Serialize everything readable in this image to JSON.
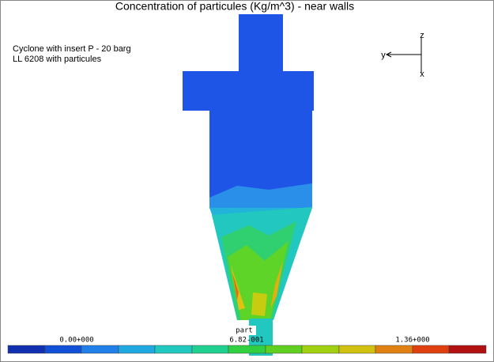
{
  "header": {
    "title": "Concentration of particules (Kg/m^3) - near walls"
  },
  "notes": [
    "Cyclone with insert P - 20 barg",
    "LL 6208 with particules"
  ],
  "axes": {
    "z": "z",
    "y": "y",
    "x": "x"
  },
  "colorbar": {
    "variable": "part",
    "labels": [
      "0.00+000",
      "6.82-001",
      "1.36+000"
    ]
  }
}
